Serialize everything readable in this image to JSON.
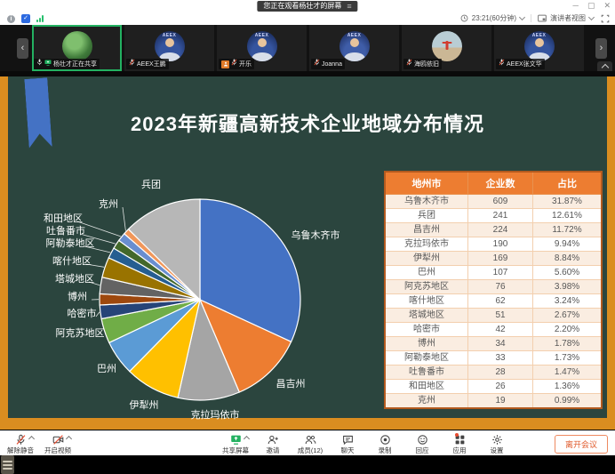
{
  "titlebar": {
    "watching_banner": "您正在观看杨壮才的屏幕"
  },
  "topbar": {
    "timer": "23:21(60分钟)",
    "view_mode": "演讲者视图"
  },
  "video_strip": {
    "tiles": [
      {
        "name": "杨壮才正在共享",
        "avatar": "plant",
        "sharing": true,
        "hand": false
      },
      {
        "name": "AEEX王鹏",
        "avatar": "aeex-man",
        "sharing": false,
        "hand": false
      },
      {
        "name": "开乐",
        "avatar": "aeex-man",
        "sharing": false,
        "hand": true
      },
      {
        "name": "Joanna",
        "avatar": "aeex-woman",
        "sharing": false,
        "hand": false
      },
      {
        "name": "海鸥依旧",
        "avatar": "beach",
        "sharing": false,
        "hand": false
      },
      {
        "name": "AEEX张文华",
        "avatar": "aeex-man",
        "sharing": false,
        "hand": false
      }
    ]
  },
  "slide": {
    "title": "2023年新疆高新技术企业地域分布情况",
    "table": {
      "headers": [
        "地州市",
        "企业数",
        "占比"
      ],
      "rows": [
        [
          "乌鲁木齐市",
          "609",
          "31.87%"
        ],
        [
          "兵团",
          "241",
          "12.61%"
        ],
        [
          "昌吉州",
          "224",
          "11.72%"
        ],
        [
          "克拉玛依市",
          "190",
          "9.94%"
        ],
        [
          "伊犁州",
          "169",
          "8.84%"
        ],
        [
          "巴州",
          "107",
          "5.60%"
        ],
        [
          "阿克苏地区",
          "76",
          "3.98%"
        ],
        [
          "喀什地区",
          "62",
          "3.24%"
        ],
        [
          "塔城地区",
          "51",
          "2.67%"
        ],
        [
          "哈密市",
          "42",
          "2.20%"
        ],
        [
          "博州",
          "34",
          "1.78%"
        ],
        [
          "阿勒泰地区",
          "33",
          "1.73%"
        ],
        [
          "吐鲁番市",
          "28",
          "1.47%"
        ],
        [
          "和田地区",
          "26",
          "1.36%"
        ],
        [
          "克州",
          "19",
          "0.99%"
        ]
      ]
    }
  },
  "chart_data": {
    "type": "pie",
    "title": "2023年新疆高新技术企业地域分布情况",
    "categories": [
      "乌鲁木齐市",
      "昌吉州",
      "克拉玛依市",
      "伊犁州",
      "巴州",
      "阿克苏地区",
      "哈密市",
      "博州",
      "塔城地区",
      "喀什地区",
      "阿勒泰地区",
      "吐鲁番市",
      "和田地区",
      "克州",
      "兵团"
    ],
    "values": [
      31.87,
      11.72,
      9.94,
      8.84,
      5.6,
      3.98,
      2.2,
      1.78,
      2.67,
      3.24,
      1.73,
      1.47,
      1.36,
      0.99,
      12.61
    ],
    "counts": [
      609,
      224,
      190,
      169,
      107,
      76,
      42,
      34,
      51,
      62,
      33,
      28,
      26,
      19,
      241
    ],
    "colors": [
      "#4472C4",
      "#ED7D31",
      "#A5A5A5",
      "#FFC000",
      "#5B9BD5",
      "#70AD47",
      "#264478",
      "#9E480E",
      "#636363",
      "#997300",
      "#255E91",
      "#43682B",
      "#698ED0",
      "#F1975A",
      "#B7B7B7"
    ],
    "legend_position": "none",
    "label_style": "outside-with-leader-lines",
    "start_angle_deg": 0,
    "direction": "clockwise"
  },
  "toolbar": {
    "items": [
      {
        "icon": "mic-muted-icon",
        "label": "解除静音",
        "caret": true,
        "badge": false
      },
      {
        "icon": "camera-muted-icon",
        "label": "开启视频",
        "caret": true,
        "badge": false
      },
      {
        "icon": "share-screen-icon",
        "label": "共享屏幕",
        "caret": true,
        "badge": false
      },
      {
        "icon": "invite-icon",
        "label": "邀请",
        "caret": false,
        "badge": false
      },
      {
        "icon": "members-icon",
        "label": "成员(12)",
        "caret": false,
        "badge": false
      },
      {
        "icon": "chat-icon",
        "label": "聊天",
        "caret": false,
        "badge": false
      },
      {
        "icon": "record-icon",
        "label": "录制",
        "caret": false,
        "badge": false
      },
      {
        "icon": "reaction-icon",
        "label": "回应",
        "caret": false,
        "badge": false
      },
      {
        "icon": "apps-icon",
        "label": "应用",
        "caret": false,
        "badge": true
      },
      {
        "icon": "settings-icon",
        "label": "设置",
        "caret": false,
        "badge": false
      }
    ],
    "leave_label": "离开会议"
  },
  "colors": {
    "accent_green": "#23B161",
    "frame_orange": "#DA8D20",
    "table_header_orange": "#ED7D31",
    "slide_bg": "#2B453E",
    "ribbon_blue": "#4472C4",
    "leave_red": "#E05A2B"
  }
}
